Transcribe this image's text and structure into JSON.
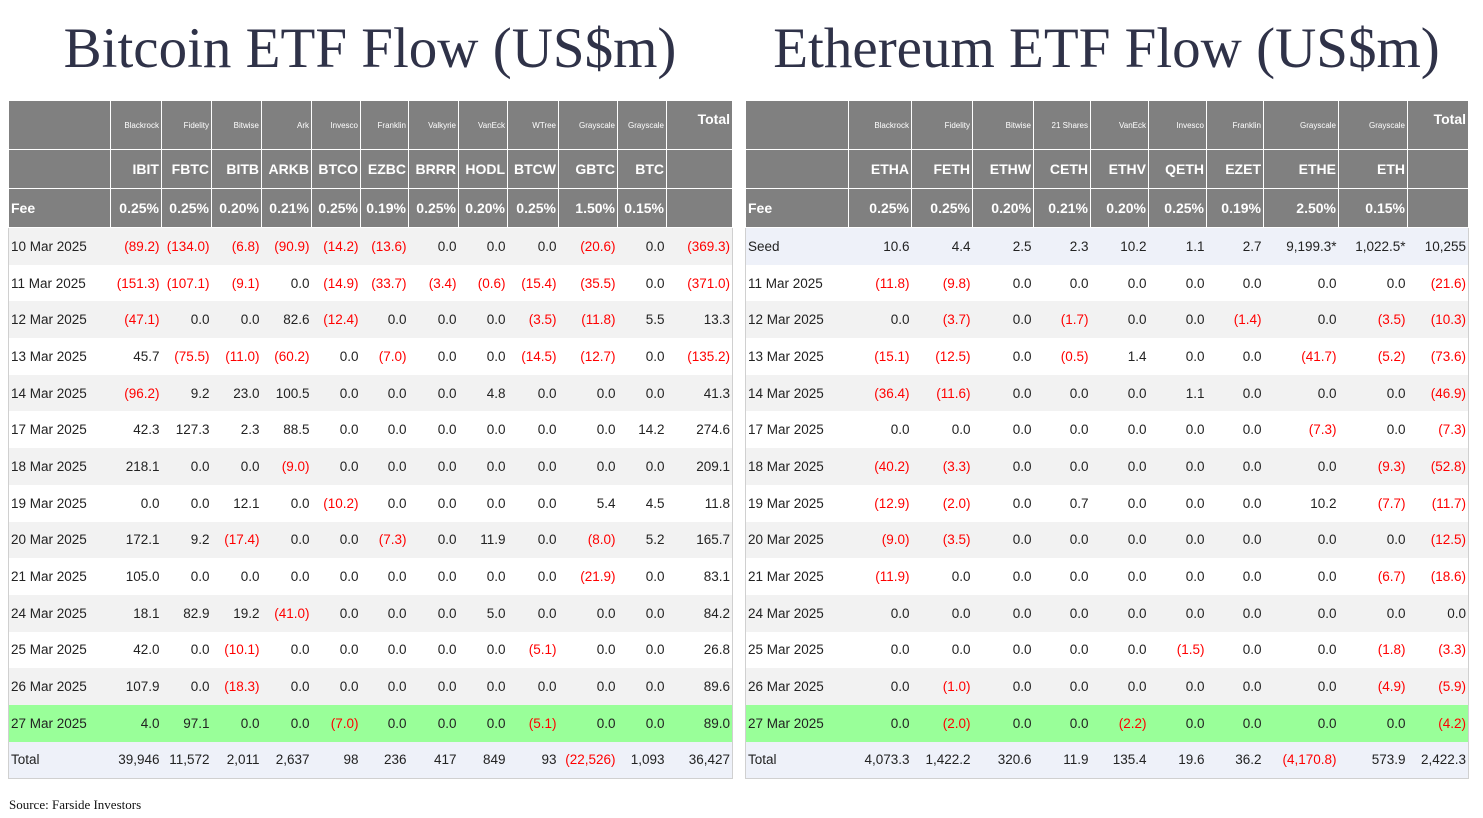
{
  "btc": {
    "title": "Bitcoin ETF Flow (US$m)",
    "issuers": [
      "Blackrock",
      "Fidelity",
      "Bitwise",
      "Ark",
      "Invesco",
      "Franklin",
      "Valkyrie",
      "VanEck",
      "WTree",
      "Grayscale",
      "Grayscale"
    ],
    "total_label": "Total",
    "tickers": [
      "IBIT",
      "FBTC",
      "BITB",
      "ARKB",
      "BTCO",
      "EZBC",
      "BRRR",
      "HODL",
      "BTCW",
      "GBTC",
      "BTC"
    ],
    "fee_label": "Fee",
    "fees": [
      "0.25%",
      "0.25%",
      "0.20%",
      "0.21%",
      "0.25%",
      "0.19%",
      "0.25%",
      "0.20%",
      "0.25%",
      "1.50%",
      "0.15%"
    ],
    "rows": [
      {
        "label": "10 Mar 2025",
        "cells": [
          "(89.2)",
          "(134.0)",
          "(6.8)",
          "(90.9)",
          "(14.2)",
          "(13.6)",
          "0.0",
          "0.0",
          "0.0",
          "(20.6)",
          "0.0",
          "(369.3)"
        ]
      },
      {
        "label": "11 Mar 2025",
        "cells": [
          "(151.3)",
          "(107.1)",
          "(9.1)",
          "0.0",
          "(14.9)",
          "(33.7)",
          "(3.4)",
          "(0.6)",
          "(15.4)",
          "(35.5)",
          "0.0",
          "(371.0)"
        ]
      },
      {
        "label": "12 Mar 2025",
        "cells": [
          "(47.1)",
          "0.0",
          "0.0",
          "82.6",
          "(12.4)",
          "0.0",
          "0.0",
          "0.0",
          "(3.5)",
          "(11.8)",
          "5.5",
          "13.3"
        ]
      },
      {
        "label": "13 Mar 2025",
        "cells": [
          "45.7",
          "(75.5)",
          "(11.0)",
          "(60.2)",
          "0.0",
          "(7.0)",
          "0.0",
          "0.0",
          "(14.5)",
          "(12.7)",
          "0.0",
          "(135.2)"
        ]
      },
      {
        "label": "14 Mar 2025",
        "cells": [
          "(96.2)",
          "9.2",
          "23.0",
          "100.5",
          "0.0",
          "0.0",
          "0.0",
          "4.8",
          "0.0",
          "0.0",
          "0.0",
          "41.3"
        ]
      },
      {
        "label": "17 Mar 2025",
        "cells": [
          "42.3",
          "127.3",
          "2.3",
          "88.5",
          "0.0",
          "0.0",
          "0.0",
          "0.0",
          "0.0",
          "0.0",
          "14.2",
          "274.6"
        ]
      },
      {
        "label": "18 Mar 2025",
        "cells": [
          "218.1",
          "0.0",
          "0.0",
          "(9.0)",
          "0.0",
          "0.0",
          "0.0",
          "0.0",
          "0.0",
          "0.0",
          "0.0",
          "209.1"
        ]
      },
      {
        "label": "19 Mar 2025",
        "cells": [
          "0.0",
          "0.0",
          "12.1",
          "0.0",
          "(10.2)",
          "0.0",
          "0.0",
          "0.0",
          "0.0",
          "5.4",
          "4.5",
          "11.8"
        ]
      },
      {
        "label": "20 Mar 2025",
        "cells": [
          "172.1",
          "9.2",
          "(17.4)",
          "0.0",
          "0.0",
          "(7.3)",
          "0.0",
          "11.9",
          "0.0",
          "(8.0)",
          "5.2",
          "165.7"
        ]
      },
      {
        "label": "21 Mar 2025",
        "cells": [
          "105.0",
          "0.0",
          "0.0",
          "0.0",
          "0.0",
          "0.0",
          "0.0",
          "0.0",
          "0.0",
          "(21.9)",
          "0.0",
          "83.1"
        ]
      },
      {
        "label": "24 Mar 2025",
        "cells": [
          "18.1",
          "82.9",
          "19.2",
          "(41.0)",
          "0.0",
          "0.0",
          "0.0",
          "5.0",
          "0.0",
          "0.0",
          "0.0",
          "84.2"
        ]
      },
      {
        "label": "25 Mar 2025",
        "cells": [
          "42.0",
          "0.0",
          "(10.1)",
          "0.0",
          "0.0",
          "0.0",
          "0.0",
          "0.0",
          "(5.1)",
          "0.0",
          "0.0",
          "26.8"
        ]
      },
      {
        "label": "26 Mar 2025",
        "cells": [
          "107.9",
          "0.0",
          "(18.3)",
          "0.0",
          "0.0",
          "0.0",
          "0.0",
          "0.0",
          "0.0",
          "0.0",
          "0.0",
          "89.6"
        ]
      },
      {
        "label": "27 Mar 2025",
        "cells": [
          "4.0",
          "97.1",
          "0.0",
          "0.0",
          "(7.0)",
          "0.0",
          "0.0",
          "0.0",
          "(5.1)",
          "0.0",
          "0.0",
          "89.0"
        ]
      }
    ],
    "total_row": {
      "label": "Total",
      "cells": [
        "39,946",
        "11,572",
        "2,011",
        "2,637",
        "98",
        "236",
        "417",
        "849",
        "93",
        "(22,526)",
        "1,093",
        "36,427"
      ]
    }
  },
  "eth": {
    "title": "Ethereum ETF Flow (US$m)",
    "issuers": [
      "Blackrock",
      "Fidelity",
      "Bitwise",
      "21 Shares",
      "VanEck",
      "Invesco",
      "Franklin",
      "Grayscale",
      "Grayscale"
    ],
    "total_label": "Total",
    "tickers": [
      "ETHA",
      "FETH",
      "ETHW",
      "CETH",
      "ETHV",
      "QETH",
      "EZET",
      "ETHE",
      "ETH"
    ],
    "fee_label": "Fee",
    "fees": [
      "0.25%",
      "0.25%",
      "0.20%",
      "0.21%",
      "0.20%",
      "0.25%",
      "0.19%",
      "2.50%",
      "0.15%"
    ],
    "rows": [
      {
        "label": "Seed",
        "cells": [
          "10.6",
          "4.4",
          "2.5",
          "2.3",
          "10.2",
          "1.1",
          "2.7",
          "9,199.3*",
          "1,022.5*",
          "10,255"
        ]
      },
      {
        "label": "11 Mar 2025",
        "cells": [
          "(11.8)",
          "(9.8)",
          "0.0",
          "0.0",
          "0.0",
          "0.0",
          "0.0",
          "0.0",
          "0.0",
          "(21.6)"
        ]
      },
      {
        "label": "12 Mar 2025",
        "cells": [
          "0.0",
          "(3.7)",
          "0.0",
          "(1.7)",
          "0.0",
          "0.0",
          "(1.4)",
          "0.0",
          "(3.5)",
          "(10.3)"
        ]
      },
      {
        "label": "13 Mar 2025",
        "cells": [
          "(15.1)",
          "(12.5)",
          "0.0",
          "(0.5)",
          "1.4",
          "0.0",
          "0.0",
          "(41.7)",
          "(5.2)",
          "(73.6)"
        ]
      },
      {
        "label": "14 Mar 2025",
        "cells": [
          "(36.4)",
          "(11.6)",
          "0.0",
          "0.0",
          "0.0",
          "1.1",
          "0.0",
          "0.0",
          "0.0",
          "(46.9)"
        ]
      },
      {
        "label": "17 Mar 2025",
        "cells": [
          "0.0",
          "0.0",
          "0.0",
          "0.0",
          "0.0",
          "0.0",
          "0.0",
          "(7.3)",
          "0.0",
          "(7.3)"
        ]
      },
      {
        "label": "18 Mar 2025",
        "cells": [
          "(40.2)",
          "(3.3)",
          "0.0",
          "0.0",
          "0.0",
          "0.0",
          "0.0",
          "0.0",
          "(9.3)",
          "(52.8)"
        ]
      },
      {
        "label": "19 Mar 2025",
        "cells": [
          "(12.9)",
          "(2.0)",
          "0.0",
          "0.7",
          "0.0",
          "0.0",
          "0.0",
          "10.2",
          "(7.7)",
          "(11.7)"
        ]
      },
      {
        "label": "20 Mar 2025",
        "cells": [
          "(9.0)",
          "(3.5)",
          "0.0",
          "0.0",
          "0.0",
          "0.0",
          "0.0",
          "0.0",
          "0.0",
          "(12.5)"
        ]
      },
      {
        "label": "21 Mar 2025",
        "cells": [
          "(11.9)",
          "0.0",
          "0.0",
          "0.0",
          "0.0",
          "0.0",
          "0.0",
          "0.0",
          "(6.7)",
          "(18.6)"
        ]
      },
      {
        "label": "24 Mar 2025",
        "cells": [
          "0.0",
          "0.0",
          "0.0",
          "0.0",
          "0.0",
          "0.0",
          "0.0",
          "0.0",
          "0.0",
          "0.0"
        ]
      },
      {
        "label": "25 Mar 2025",
        "cells": [
          "0.0",
          "0.0",
          "0.0",
          "0.0",
          "0.0",
          "(1.5)",
          "0.0",
          "0.0",
          "(1.8)",
          "(3.3)"
        ]
      },
      {
        "label": "26 Mar 2025",
        "cells": [
          "0.0",
          "(1.0)",
          "0.0",
          "0.0",
          "0.0",
          "0.0",
          "0.0",
          "0.0",
          "(4.9)",
          "(5.9)"
        ]
      },
      {
        "label": "27 Mar 2025",
        "cells": [
          "0.0",
          "(2.0)",
          "0.0",
          "0.0",
          "(2.2)",
          "0.0",
          "0.0",
          "0.0",
          "0.0",
          "(4.2)"
        ]
      }
    ],
    "total_row": {
      "label": "Total",
      "cells": [
        "4,073.3",
        "1,422.2",
        "320.6",
        "11.9",
        "135.4",
        "19.6",
        "36.2",
        "(4,170.8)",
        "573.9",
        "2,422.3"
      ]
    }
  },
  "source": "Source: Farside Investors"
}
